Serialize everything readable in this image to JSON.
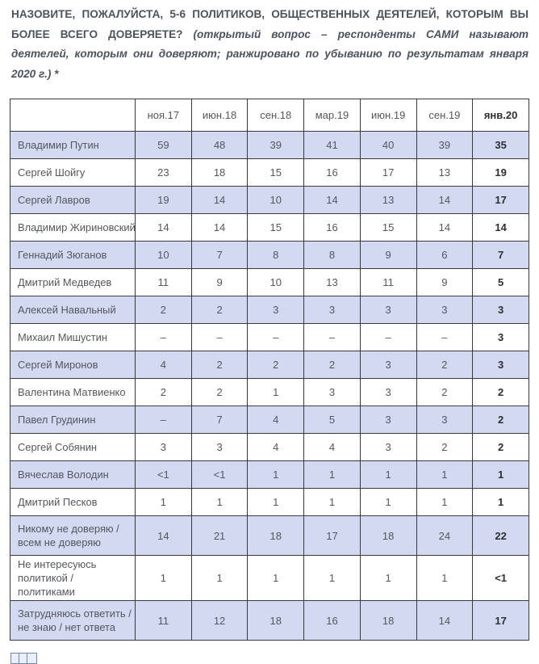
{
  "question": {
    "text": "НАЗОВИТЕ, ПОЖАЛУЙСТА, 5-6 ПОЛИТИКОВ, ОБЩЕСТВЕННЫХ ДЕЯТЕЛЕЙ, КОТОРЫМ ВЫ БОЛЕЕ ВСЕГО ДОВЕРЯЕТЕ? ",
    "note": "(открытый вопрос – респонденты САМИ называют деятелей, которым они доверяют; ранжировано по убыванию по результатам января 2020 г.) *"
  },
  "chart_data": {
    "type": "table",
    "title": "НАЗОВИТЕ, ПОЖАЛУЙСТА, 5-6 ПОЛИТИКОВ, ОБЩЕСТВЕННЫХ ДЕЯТЕЛЕЙ, КОТОРЫМ ВЫ БОЛЕЕ ВСЕГО ДОВЕРЯЕТЕ?",
    "subtitle": "(открытый вопрос – респонденты САМИ называют деятелей, которым они доверяют; ранжировано по убыванию по результатам января 2020 г.) *",
    "categories": [
      "ноя.17",
      "июн.18",
      "сен.18",
      "мар.19",
      "июн.19",
      "сен.19",
      "янв.20"
    ],
    "rows": [
      {
        "name": "Владимир Путин",
        "values": [
          "59",
          "48",
          "39",
          "41",
          "40",
          "39",
          "35"
        ]
      },
      {
        "name": "Сергей Шойгу",
        "values": [
          "23",
          "18",
          "15",
          "16",
          "17",
          "13",
          "19"
        ]
      },
      {
        "name": "Сергей Лавров",
        "values": [
          "19",
          "14",
          "10",
          "14",
          "13",
          "14",
          "17"
        ]
      },
      {
        "name": "Владимир Жириновский",
        "values": [
          "14",
          "14",
          "15",
          "16",
          "15",
          "14",
          "14"
        ]
      },
      {
        "name": "Геннадий Зюганов",
        "values": [
          "10",
          "7",
          "8",
          "8",
          "9",
          "6",
          "7"
        ]
      },
      {
        "name": "Дмитрий Медведев",
        "values": [
          "11",
          "9",
          "10",
          "13",
          "11",
          "9",
          "5"
        ]
      },
      {
        "name": "Алексей Навальный",
        "values": [
          "2",
          "2",
          "3",
          "3",
          "3",
          "3",
          "3"
        ]
      },
      {
        "name": "Михаил Мишустин",
        "values": [
          "–",
          "–",
          "–",
          "–",
          "–",
          "–",
          "3"
        ]
      },
      {
        "name": "Сергей Миронов",
        "values": [
          "4",
          "2",
          "2",
          "2",
          "3",
          "2",
          "3"
        ]
      },
      {
        "name": "Валентина Матвиенко",
        "values": [
          "2",
          "2",
          "1",
          "3",
          "3",
          "2",
          "2"
        ]
      },
      {
        "name": "Павел Грудинин",
        "values": [
          "–",
          "7",
          "4",
          "5",
          "3",
          "3",
          "2"
        ]
      },
      {
        "name": "Сергей Собянин",
        "values": [
          "3",
          "3",
          "4",
          "4",
          "3",
          "2",
          "2"
        ]
      },
      {
        "name": "Вячеслав Володин",
        "values": [
          "<1",
          "<1",
          "1",
          "1",
          "1",
          "1",
          "1"
        ]
      },
      {
        "name": "Дмитрий Песков",
        "values": [
          "1",
          "1",
          "1",
          "1",
          "1",
          "1",
          "1"
        ]
      },
      {
        "name": "Никому не доверяю / всем не доверяю",
        "values": [
          "14",
          "21",
          "18",
          "17",
          "18",
          "24",
          "22"
        ]
      },
      {
        "name": "Не интересуюсь политикой / политиками",
        "values": [
          "1",
          "1",
          "1",
          "1",
          "1",
          "1",
          "<1"
        ]
      },
      {
        "name": "Затрудняюсь ответить / не знаю / нет ответа",
        "values": [
          "11",
          "12",
          "18",
          "16",
          "18",
          "14",
          "17"
        ]
      }
    ],
    "layout": {
      "striped_rows": "odd",
      "last_column_bold": true,
      "legend": "none",
      "grid": "full-borders"
    }
  },
  "colors": {
    "stripe": "#d3d9f0",
    "table_border": "#3a3a3a",
    "table_text": "#54575d",
    "bold_text": "#2d2f33",
    "question_text": "#4c5360",
    "fragment_border": "#6d87c3",
    "fragment_fill": "#eaeffa"
  }
}
